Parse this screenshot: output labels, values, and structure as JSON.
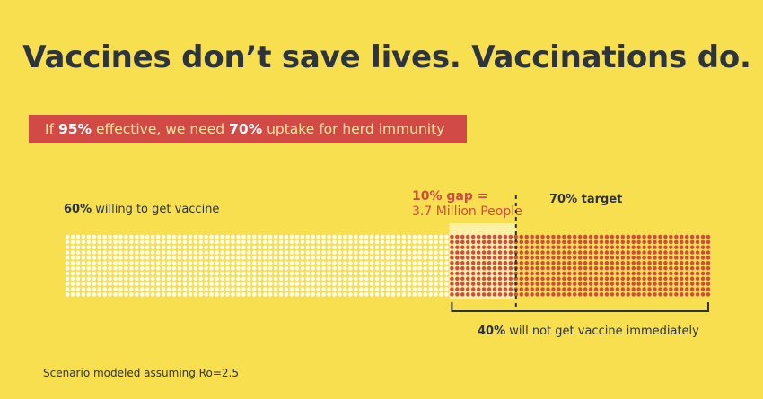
{
  "title": "Vaccines don’t save lives. Vaccinations do.",
  "banner": {
    "pre": "If ",
    "effectiveness": "95%",
    "mid": " effective, we need ",
    "uptake": "70%",
    "post": " uptake for herd immunity"
  },
  "labels": {
    "willing_pct": "60%",
    "willing_text": " willing to get vaccine",
    "gap_head": "10% gap =",
    "gap_sub": "3.7 Million People",
    "target": "70% target",
    "not_get_pct": "40%",
    "not_get_text": " will not get vaccine immediately"
  },
  "footnote": "Scenario modeled assuming Ro=2.5",
  "colors": {
    "background": "#F8DF4F",
    "willing_dots": "#FFFFFF",
    "unwilling_dots": "#D14A45",
    "gap_highlight": "#FBF0A4",
    "text": "#2B3440",
    "accent": "#D14A45"
  },
  "chart_data": {
    "type": "waffle",
    "segments": [
      {
        "name": "willing to get vaccine",
        "percent": 60
      },
      {
        "name": "gap",
        "percent": 10
      },
      {
        "name": "will not get vaccine immediately (beyond target)",
        "percent": 30
      }
    ],
    "target_percent": 70,
    "gap_people": "3.7 Million People"
  }
}
